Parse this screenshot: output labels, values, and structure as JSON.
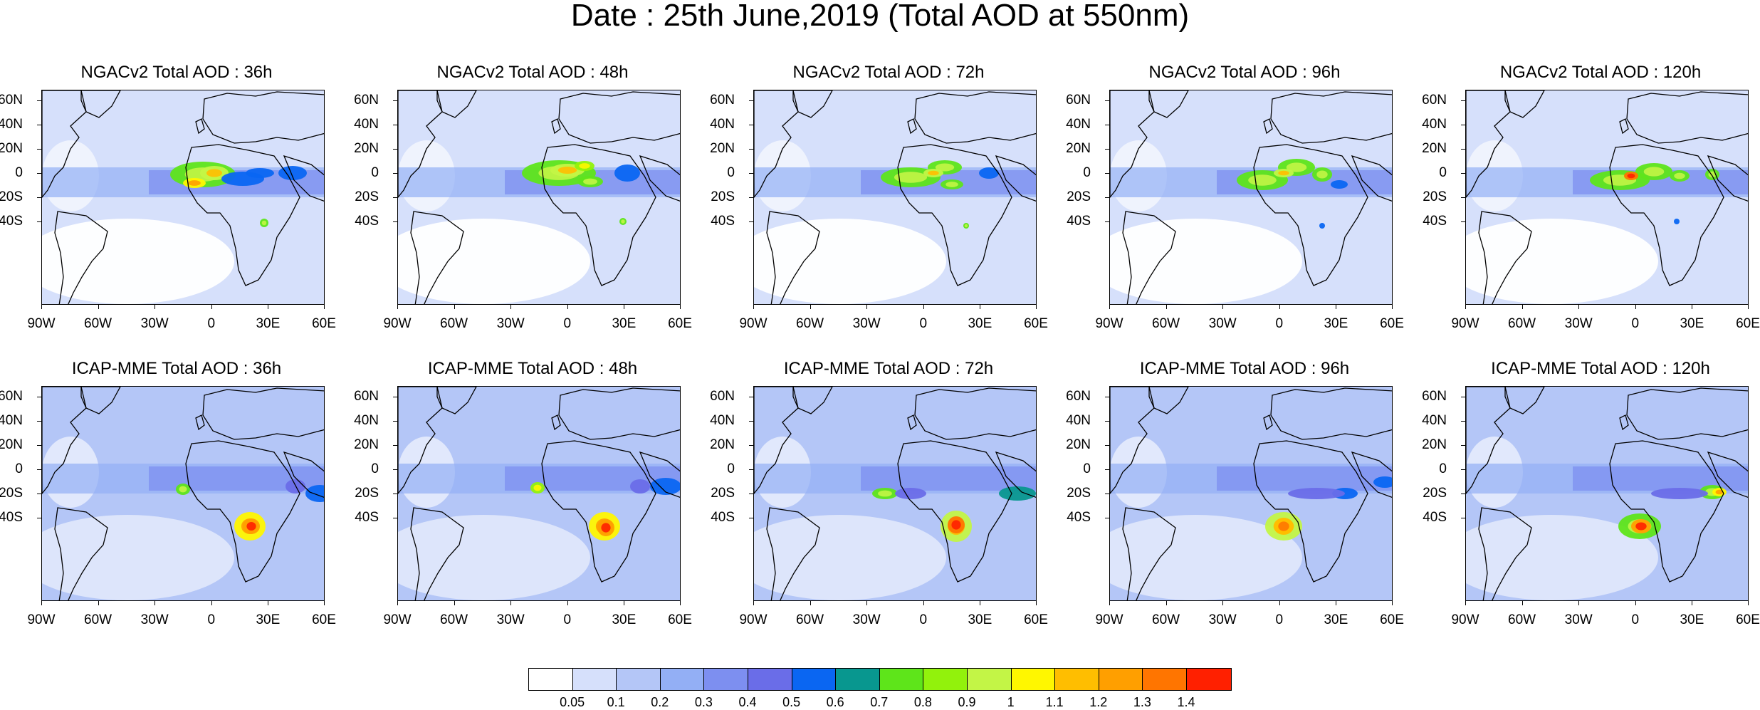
{
  "title": "Date : 25th June,2019 (Total AOD at 550nm)",
  "panels": [
    {
      "title": "NGACv2 Total AOD : 36h",
      "model": "NGAC",
      "lead": 36
    },
    {
      "title": "NGACv2 Total AOD : 48h",
      "model": "NGAC",
      "lead": 48
    },
    {
      "title": "NGACv2 Total AOD : 72h",
      "model": "NGAC",
      "lead": 72
    },
    {
      "title": "NGACv2 Total AOD : 96h",
      "model": "NGAC",
      "lead": 96
    },
    {
      "title": "NGACv2 Total AOD : 120h",
      "model": "NGAC",
      "lead": 120
    },
    {
      "title": "ICAP-MME Total AOD : 36h",
      "model": "ICAP",
      "lead": 36
    },
    {
      "title": "ICAP-MME Total AOD : 48h",
      "model": "ICAP",
      "lead": 48
    },
    {
      "title": "ICAP-MME Total AOD : 72h",
      "model": "ICAP",
      "lead": 72
    },
    {
      "title": "ICAP-MME Total AOD : 96h",
      "model": "ICAP",
      "lead": 96
    },
    {
      "title": "ICAP-MME Total AOD : 120h",
      "model": "ICAP",
      "lead": 120
    }
  ],
  "lat_ticks": [
    "60N",
    "40N",
    "20N",
    "0",
    "20S",
    "40S"
  ],
  "lon_ticks": [
    "90W",
    "60W",
    "30W",
    "0",
    "30E",
    "60E"
  ],
  "colorbar": {
    "colors": [
      "#ffffff",
      "#d6e0fb",
      "#b4c6f7",
      "#93aff5",
      "#7d8ff0",
      "#6a6de8",
      "#0a66f2",
      "#08978f",
      "#5ee51a",
      "#92f20c",
      "#c3f546",
      "#fff700",
      "#ffbe00",
      "#ff9f00",
      "#ff7500",
      "#ff2000"
    ],
    "labels": [
      "0.05",
      "0.1",
      "0.2",
      "0.3",
      "0.4",
      "0.5",
      "0.6",
      "0.7",
      "0.8",
      "0.9",
      "1",
      "1.1",
      "1.2",
      "1.3",
      "1.4"
    ]
  }
}
